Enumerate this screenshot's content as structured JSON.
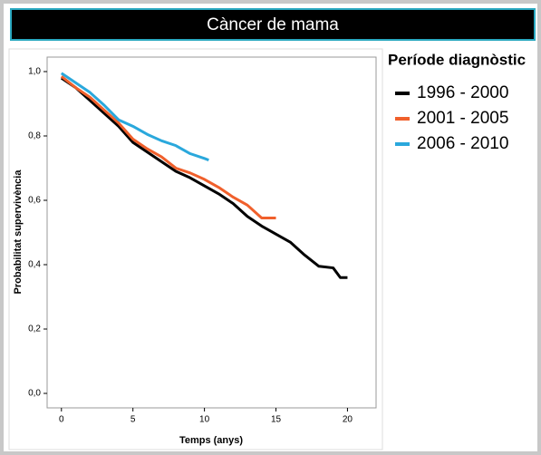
{
  "chart_data": {
    "type": "line",
    "title": "Càncer de mama",
    "x_label": "Temps (anys)",
    "y_label": "Probabilitat supervivència",
    "legend_title": "Període diagnòstic",
    "xlim": [
      -1,
      22
    ],
    "ylim": [
      -0.045,
      1.045
    ],
    "xticks": [
      0,
      5,
      10,
      15,
      20
    ],
    "yticks": [
      {
        "value": 0,
        "label": "0,0"
      },
      {
        "value": 0.2,
        "label": "0,2"
      },
      {
        "value": 0.4,
        "label": "0,4"
      },
      {
        "value": 0.6,
        "label": "0,6"
      },
      {
        "value": 0.8,
        "label": "0,8"
      },
      {
        "value": 1,
        "label": "1,0"
      }
    ],
    "series": [
      {
        "name": "1996 - 2000",
        "color": "#000000",
        "x": [
          0,
          1,
          2,
          3,
          4,
          5,
          6,
          7,
          8,
          9,
          10,
          11,
          12,
          13,
          14,
          15,
          16,
          17,
          18,
          19,
          19.5,
          20
        ],
        "values": [
          0.98,
          0.95,
          0.91,
          0.87,
          0.83,
          0.78,
          0.75,
          0.72,
          0.69,
          0.67,
          0.645,
          0.62,
          0.59,
          0.55,
          0.52,
          0.495,
          0.47,
          0.43,
          0.395,
          0.39,
          0.36,
          0.36
        ]
      },
      {
        "name": "2001 - 2005",
        "color": "#f0602c",
        "x": [
          0,
          1,
          2,
          3,
          4,
          5,
          6,
          7,
          8,
          9,
          10,
          11,
          12,
          13,
          14,
          15
        ],
        "values": [
          0.985,
          0.95,
          0.92,
          0.88,
          0.84,
          0.79,
          0.76,
          0.735,
          0.7,
          0.685,
          0.665,
          0.64,
          0.61,
          0.585,
          0.545,
          0.545
        ]
      },
      {
        "name": "2006 - 2010",
        "color": "#2aa8dc",
        "x": [
          0,
          1,
          2,
          3,
          4,
          5,
          6,
          7,
          8,
          9,
          10,
          10.3
        ],
        "values": [
          0.995,
          0.965,
          0.935,
          0.895,
          0.85,
          0.83,
          0.805,
          0.785,
          0.77,
          0.745,
          0.73,
          0.725
        ]
      }
    ]
  }
}
